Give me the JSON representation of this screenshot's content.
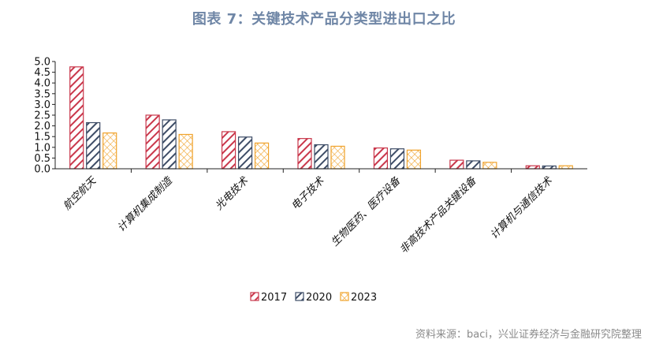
{
  "title": "图表 7：关键技术产品分类型进出口之比",
  "source": "资料来源：baci，兴业证券经济与金融研究院整理",
  "chart_data": {
    "type": "bar",
    "title": "图表 7：关键技术产品分类型进出口之比",
    "xlabel": "",
    "ylabel": "",
    "ylim": [
      0,
      5
    ],
    "yticks": [
      "0.0",
      "0.5",
      "1.0",
      "1.5",
      "2.0",
      "2.5",
      "3.0",
      "3.5",
      "4.0",
      "4.5",
      "5.0"
    ],
    "grid": false,
    "legend_position": "bottom",
    "categories": [
      "航空航天",
      "计算机集成制造",
      "光电技术",
      "电子技术",
      "生物医药、医疗设备",
      "非高技术产品关键设备",
      "计算机与通信技术"
    ],
    "series": [
      {
        "name": "2017",
        "color": "#c9374b",
        "values": [
          4.75,
          2.5,
          1.73,
          1.41,
          0.97,
          0.4,
          0.14
        ]
      },
      {
        "name": "2020",
        "color": "#3d4c66",
        "values": [
          2.15,
          2.28,
          1.48,
          1.12,
          0.93,
          0.37,
          0.13
        ]
      },
      {
        "name": "2023",
        "color": "#f0a32c",
        "values": [
          1.67,
          1.6,
          1.2,
          1.05,
          0.87,
          0.3,
          0.14
        ]
      }
    ]
  }
}
